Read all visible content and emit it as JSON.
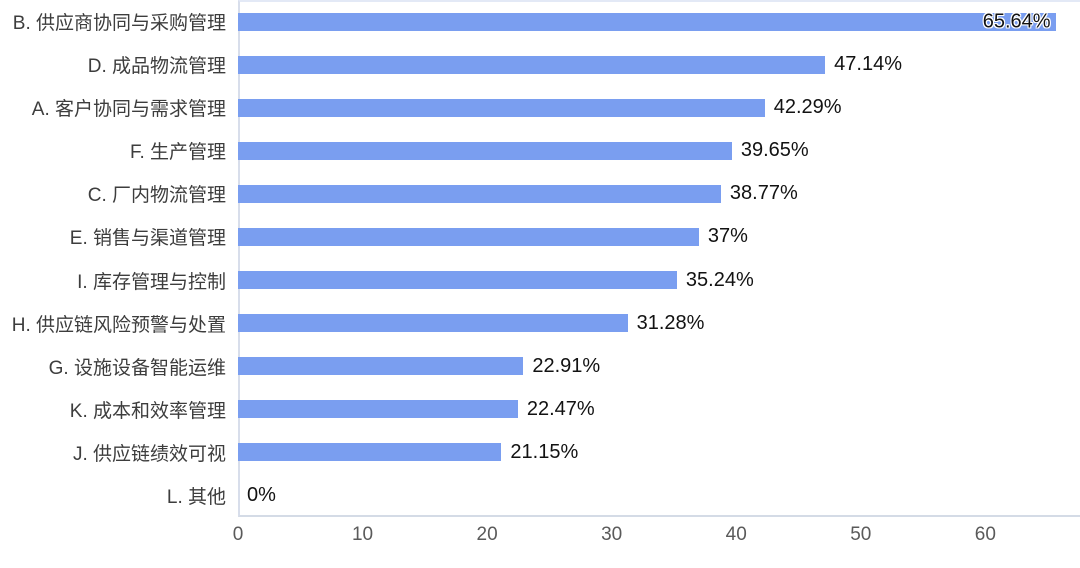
{
  "chart_data": {
    "type": "bar",
    "orientation": "horizontal",
    "title": "",
    "xlabel": "",
    "ylabel": "",
    "grid": false,
    "legend": null,
    "xlim": [
      0,
      67.6
    ],
    "xticks": [
      "0",
      "10",
      "20",
      "30",
      "40",
      "50",
      "60"
    ],
    "xtick_values": [
      0,
      10,
      20,
      30,
      40,
      50,
      60
    ],
    "categories": [
      "B. 供应商协同与采购管理",
      "D. 成品物流管理",
      "A. 客户协同与需求管理",
      "F. 生产管理",
      "C. 厂内物流管理",
      "E. 销售与渠道管理",
      "I. 库存管理与控制",
      "H. 供应链风险预警与处置",
      "G. 设施设备智能运维",
      "K. 成本和效率管理",
      "J. 供应链绩效可视",
      "L. 其他"
    ],
    "values": [
      65.64,
      47.14,
      42.29,
      39.65,
      38.77,
      37,
      35.24,
      31.28,
      22.91,
      22.47,
      21.15,
      0
    ],
    "value_labels": [
      "65.64%",
      "47.14%",
      "42.29%",
      "39.65%",
      "38.77%",
      "37%",
      "35.24%",
      "31.28%",
      "22.91%",
      "22.47%",
      "21.15%",
      "0%"
    ],
    "colors": {
      "bar": "#7A9EF0",
      "category_text": "#3D3D3D",
      "value_text": "#121212",
      "tick_text": "#5A5A5A",
      "axis_line": "#D8DEEB"
    }
  }
}
